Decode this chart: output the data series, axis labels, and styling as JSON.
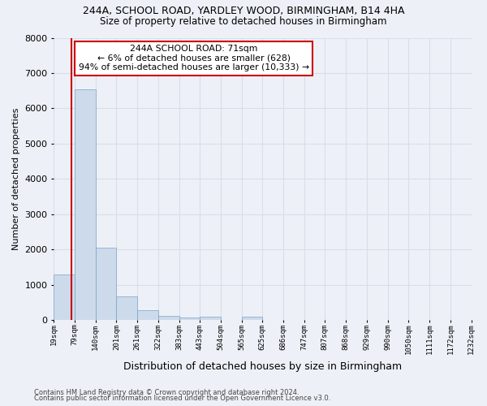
{
  "title1": "244A, SCHOOL ROAD, YARDLEY WOOD, BIRMINGHAM, B14 4HA",
  "title2": "Size of property relative to detached houses in Birmingham",
  "xlabel": "Distribution of detached houses by size in Birmingham",
  "ylabel": "Number of detached properties",
  "footer1": "Contains HM Land Registry data © Crown copyright and database right 2024.",
  "footer2": "Contains public sector information licensed under the Open Government Licence v3.0.",
  "annotation_title": "244A SCHOOL ROAD: 71sqm",
  "annotation_line2": "← 6% of detached houses are smaller (628)",
  "annotation_line3": "94% of semi-detached houses are larger (10,333) →",
  "property_size": 71,
  "bin_edges": [
    19,
    79,
    140,
    201,
    261,
    322,
    383,
    443,
    504,
    565,
    625,
    686,
    747,
    807,
    868,
    929,
    990,
    1050,
    1111,
    1172,
    1232
  ],
  "bar_heights": [
    1300,
    6550,
    2060,
    680,
    290,
    130,
    80,
    110,
    0,
    100,
    0,
    0,
    0,
    0,
    0,
    0,
    0,
    0,
    0,
    0
  ],
  "bar_color": "#ccdaeb",
  "bar_edge_color": "#7ba3c8",
  "highlight_color": "#cc0000",
  "annotation_box_color": "#ffffff",
  "annotation_box_edge": "#cc0000",
  "bg_color": "#edf1f7",
  "grid_color": "#d8dee8",
  "ylim": [
    0,
    8000
  ],
  "yticks": [
    0,
    1000,
    2000,
    3000,
    4000,
    5000,
    6000,
    7000,
    8000
  ]
}
